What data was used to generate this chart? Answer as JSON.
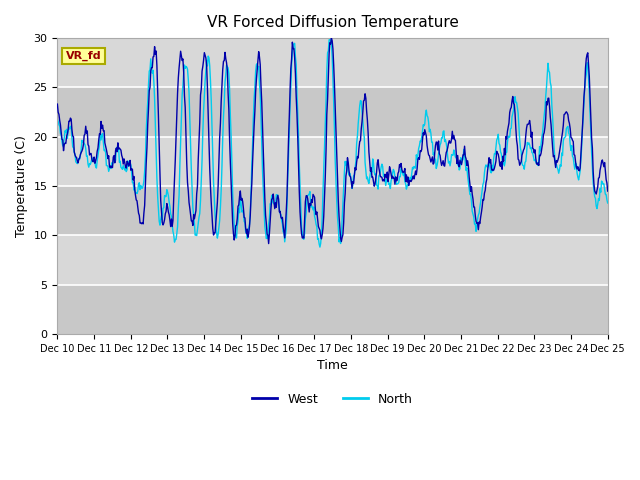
{
  "title": "VR Forced Diffusion Temperature",
  "xlabel": "Time",
  "ylabel": "Temperature (C)",
  "ylim": [
    0,
    30
  ],
  "xlim": [
    0,
    15
  ],
  "bg_color_light": "#d8d8d8",
  "bg_color_dark": "#c8c8c8",
  "west_color": "#0000AA",
  "north_color": "#00CCEE",
  "tick_labels": [
    "Dec 10",
    "Dec 11",
    "Dec 12",
    "Dec 13",
    "Dec 14",
    "Dec 15",
    "Dec 16",
    "Dec 17",
    "Dec 18",
    "Dec 19",
    "Dec 20",
    "Dec 21",
    "Dec 22",
    "Dec 23",
    "Dec 24",
    "Dec 25"
  ],
  "legend_label_west": "West",
  "legend_label_north": "North",
  "label_box_text": "VR_fd",
  "label_box_bg": "#FFFF99",
  "label_box_edge": "#AAAA00"
}
